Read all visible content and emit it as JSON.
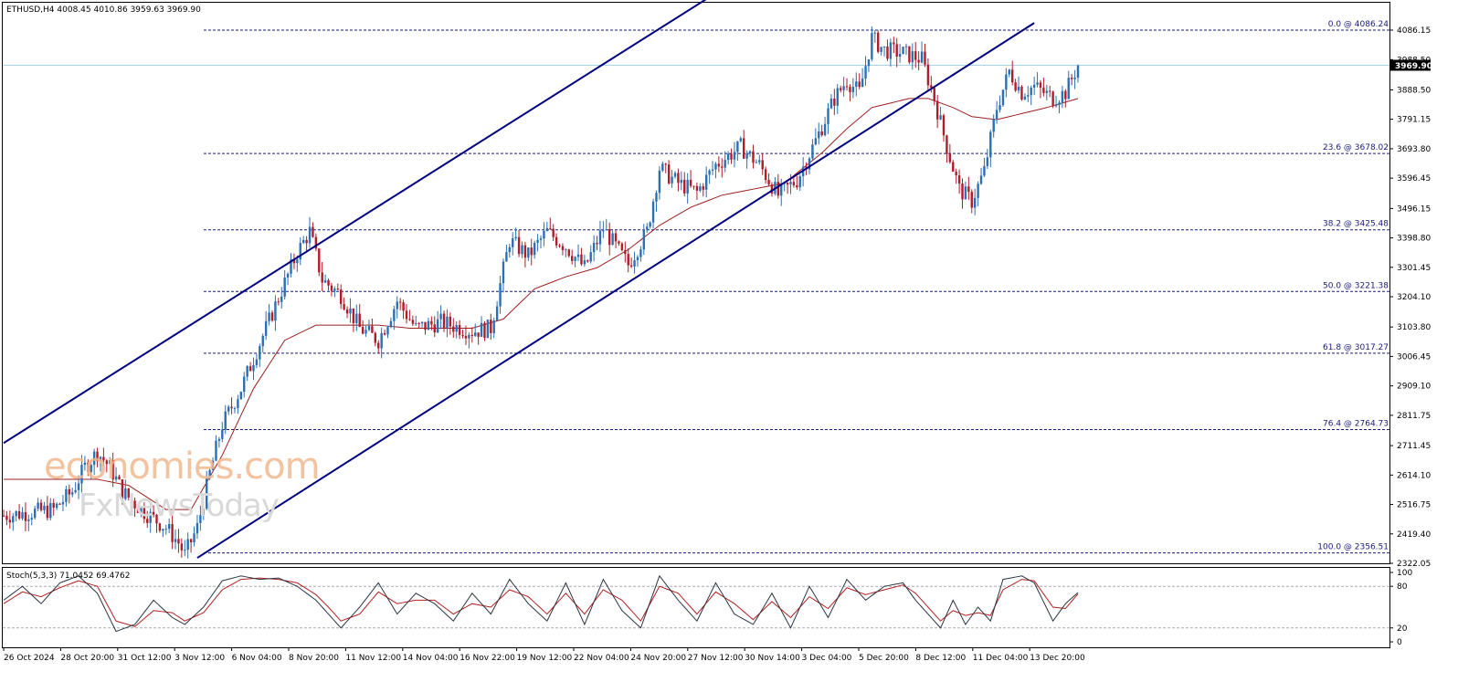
{
  "header": {
    "symbol": "ETHUSD,H4",
    "ohlc": "4008.45 4010.86 3959.63 3969.90"
  },
  "indicator": {
    "label": "Stoch(5,3,3) 71.0452 69.4762"
  },
  "watermark": {
    "line1": "economies.com",
    "line2": "FxNewsToday"
  },
  "chart_data": {
    "type": "candlestick",
    "symbol": "ETHUSD",
    "timeframe": "H4",
    "current_price": "3969.90",
    "current_price_value": 3969.9,
    "ylim": [
      2322.05,
      4183.5
    ],
    "y_ticks": [
      "4086.15",
      "3988.50",
      "3888.50",
      "3791.15",
      "3693.80",
      "3596.45",
      "3496.15",
      "3398.80",
      "3301.45",
      "3204.10",
      "3103.80",
      "3006.45",
      "2909.10",
      "2811.75",
      "2711.45",
      "2614.10",
      "2516.75",
      "2419.40",
      "2322.05"
    ],
    "x_labels": [
      "26 Oct 2024",
      "28 Oct 20:00",
      "31 Oct 12:00",
      "3 Nov 12:00",
      "6 Nov 04:00",
      "8 Nov 20:00",
      "11 Nov 12:00",
      "14 Nov 04:00",
      "16 Nov 22:00",
      "19 Nov 12:00",
      "22 Nov 04:00",
      "24 Nov 20:00",
      "27 Nov 12:00",
      "30 Nov 14:00",
      "3 Dec 04:00",
      "5 Dec 20:00",
      "8 Dec 12:00",
      "11 Dec 04:00",
      "13 Dec 20:00"
    ],
    "fibonacci": [
      {
        "label": "0.0 @ 4086.24",
        "level": 0.0,
        "price": 4086.24
      },
      {
        "label": "23.6 @ 3678.02",
        "level": 23.6,
        "price": 3678.02
      },
      {
        "label": "38.2 @ 3425.48",
        "level": 38.2,
        "price": 3425.48
      },
      {
        "label": "50.0 @ 3221.38",
        "level": 50.0,
        "price": 3221.38
      },
      {
        "label": "61.8 @ 3017.27",
        "level": 61.8,
        "price": 3017.27
      },
      {
        "label": "76.4 @ 2764.73",
        "level": 76.4,
        "price": 2764.73
      },
      {
        "label": "100.0 @ 2356.51",
        "level": 100.0,
        "price": 2356.51
      }
    ],
    "price_path": [
      [
        0,
        2480
      ],
      [
        8,
        2490
      ],
      [
        16,
        2500
      ],
      [
        22,
        2560
      ],
      [
        26,
        2640
      ],
      [
        30,
        2690
      ],
      [
        34,
        2640
      ],
      [
        38,
        2560
      ],
      [
        44,
        2500
      ],
      [
        52,
        2440
      ],
      [
        56,
        2390
      ],
      [
        58,
        2350
      ],
      [
        62,
        2440
      ],
      [
        66,
        2620
      ],
      [
        70,
        2780
      ],
      [
        76,
        2900
      ],
      [
        82,
        3050
      ],
      [
        88,
        3200
      ],
      [
        94,
        3350
      ],
      [
        98,
        3420
      ],
      [
        102,
        3260
      ],
      [
        108,
        3210
      ],
      [
        114,
        3100
      ],
      [
        120,
        3060
      ],
      [
        126,
        3190
      ],
      [
        132,
        3100
      ],
      [
        140,
        3120
      ],
      [
        150,
        3090
      ],
      [
        156,
        3100
      ],
      [
        162,
        3390
      ],
      [
        168,
        3340
      ],
      [
        174,
        3420
      ],
      [
        180,
        3370
      ],
      [
        186,
        3300
      ],
      [
        192,
        3430
      ],
      [
        196,
        3370
      ],
      [
        200,
        3310
      ],
      [
        206,
        3420
      ],
      [
        210,
        3630
      ],
      [
        216,
        3580
      ],
      [
        222,
        3550
      ],
      [
        228,
        3640
      ],
      [
        236,
        3700
      ],
      [
        242,
        3640
      ],
      [
        248,
        3540
      ],
      [
        254,
        3590
      ],
      [
        260,
        3720
      ],
      [
        266,
        3860
      ],
      [
        270,
        3920
      ],
      [
        274,
        3880
      ],
      [
        278,
        4060
      ],
      [
        282,
        4020
      ],
      [
        288,
        4010
      ],
      [
        294,
        3990
      ],
      [
        298,
        3860
      ],
      [
        302,
        3700
      ],
      [
        306,
        3560
      ],
      [
        310,
        3520
      ],
      [
        314,
        3620
      ],
      [
        318,
        3830
      ],
      [
        322,
        3950
      ],
      [
        326,
        3880
      ],
      [
        330,
        3900
      ],
      [
        336,
        3860
      ],
      [
        340,
        3880
      ],
      [
        344,
        3970
      ]
    ],
    "moving_average": [
      [
        0,
        2600
      ],
      [
        30,
        2600
      ],
      [
        40,
        2580
      ],
      [
        52,
        2500
      ],
      [
        60,
        2500
      ],
      [
        70,
        2680
      ],
      [
        80,
        2900
      ],
      [
        90,
        3060
      ],
      [
        100,
        3110
      ],
      [
        110,
        3110
      ],
      [
        120,
        3110
      ],
      [
        130,
        3100
      ],
      [
        150,
        3100
      ],
      [
        160,
        3130
      ],
      [
        170,
        3230
      ],
      [
        180,
        3270
      ],
      [
        190,
        3300
      ],
      [
        200,
        3360
      ],
      [
        210,
        3440
      ],
      [
        220,
        3500
      ],
      [
        230,
        3540
      ],
      [
        240,
        3560
      ],
      [
        250,
        3580
      ],
      [
        262,
        3680
      ],
      [
        270,
        3760
      ],
      [
        278,
        3830
      ],
      [
        290,
        3860
      ],
      [
        296,
        3860
      ],
      [
        304,
        3830
      ],
      [
        310,
        3800
      ],
      [
        318,
        3790
      ],
      [
        326,
        3810
      ],
      [
        334,
        3830
      ],
      [
        344,
        3860
      ]
    ],
    "channel": {
      "upper": [
        [
          0,
          2720
        ],
        [
          242,
          4300
        ]
      ],
      "lower": [
        [
          62,
          2340
        ],
        [
          330,
          4110
        ]
      ]
    },
    "stochastic": {
      "name": "Stoch(5,3,3)",
      "k": 71.0452,
      "d": 69.4762,
      "levels": [
        20,
        80
      ],
      "scale_labels": [
        "100",
        "80",
        "20",
        "0"
      ],
      "k_path": [
        [
          0,
          60
        ],
        [
          6,
          80
        ],
        [
          12,
          55
        ],
        [
          18,
          85
        ],
        [
          24,
          95
        ],
        [
          30,
          70
        ],
        [
          36,
          15
        ],
        [
          42,
          25
        ],
        [
          48,
          60
        ],
        [
          54,
          35
        ],
        [
          58,
          25
        ],
        [
          64,
          50
        ],
        [
          70,
          88
        ],
        [
          76,
          95
        ],
        [
          82,
          90
        ],
        [
          88,
          92
        ],
        [
          94,
          80
        ],
        [
          100,
          60
        ],
        [
          104,
          40
        ],
        [
          108,
          20
        ],
        [
          114,
          50
        ],
        [
          120,
          85
        ],
        [
          126,
          40
        ],
        [
          132,
          70
        ],
        [
          138,
          55
        ],
        [
          144,
          30
        ],
        [
          150,
          70
        ],
        [
          156,
          40
        ],
        [
          162,
          90
        ],
        [
          168,
          55
        ],
        [
          174,
          30
        ],
        [
          180,
          85
        ],
        [
          186,
          25
        ],
        [
          192,
          90
        ],
        [
          198,
          45
        ],
        [
          204,
          20
        ],
        [
          210,
          95
        ],
        [
          216,
          60
        ],
        [
          222,
          30
        ],
        [
          228,
          85
        ],
        [
          234,
          40
        ],
        [
          240,
          25
        ],
        [
          246,
          70
        ],
        [
          252,
          20
        ],
        [
          258,
          80
        ],
        [
          264,
          35
        ],
        [
          270,
          90
        ],
        [
          276,
          60
        ],
        [
          282,
          80
        ],
        [
          288,
          85
        ],
        [
          292,
          60
        ],
        [
          296,
          40
        ],
        [
          300,
          20
        ],
        [
          304,
          60
        ],
        [
          308,
          25
        ],
        [
          312,
          50
        ],
        [
          316,
          30
        ],
        [
          320,
          90
        ],
        [
          326,
          95
        ],
        [
          330,
          85
        ],
        [
          336,
          30
        ],
        [
          340,
          55
        ],
        [
          344,
          71
        ]
      ],
      "d_path": [
        [
          0,
          55
        ],
        [
          6,
          72
        ],
        [
          12,
          65
        ],
        [
          18,
          78
        ],
        [
          24,
          88
        ],
        [
          30,
          80
        ],
        [
          36,
          30
        ],
        [
          42,
          22
        ],
        [
          48,
          45
        ],
        [
          54,
          42
        ],
        [
          58,
          30
        ],
        [
          64,
          42
        ],
        [
          70,
          75
        ],
        [
          76,
          90
        ],
        [
          82,
          92
        ],
        [
          88,
          90
        ],
        [
          94,
          85
        ],
        [
          100,
          68
        ],
        [
          104,
          50
        ],
        [
          108,
          30
        ],
        [
          114,
          40
        ],
        [
          120,
          72
        ],
        [
          126,
          55
        ],
        [
          132,
          60
        ],
        [
          138,
          60
        ],
        [
          144,
          40
        ],
        [
          150,
          55
        ],
        [
          156,
          50
        ],
        [
          162,
          75
        ],
        [
          168,
          65
        ],
        [
          174,
          40
        ],
        [
          180,
          70
        ],
        [
          186,
          40
        ],
        [
          192,
          75
        ],
        [
          198,
          60
        ],
        [
          204,
          30
        ],
        [
          210,
          80
        ],
        [
          216,
          70
        ],
        [
          222,
          40
        ],
        [
          228,
          72
        ],
        [
          234,
          55
        ],
        [
          240,
          32
        ],
        [
          246,
          58
        ],
        [
          252,
          35
        ],
        [
          258,
          65
        ],
        [
          264,
          48
        ],
        [
          270,
          78
        ],
        [
          276,
          68
        ],
        [
          282,
          75
        ],
        [
          288,
          82
        ],
        [
          292,
          70
        ],
        [
          296,
          50
        ],
        [
          300,
          30
        ],
        [
          304,
          45
        ],
        [
          308,
          38
        ],
        [
          312,
          42
        ],
        [
          316,
          38
        ],
        [
          320,
          75
        ],
        [
          326,
          90
        ],
        [
          330,
          88
        ],
        [
          336,
          50
        ],
        [
          340,
          48
        ],
        [
          344,
          69
        ]
      ]
    }
  },
  "colors": {
    "bull": "#2b6fb5",
    "bear": "#b01c2a",
    "channel": "#00007d",
    "fib": "#1a1a7a",
    "ma": "#9c2020",
    "current_line": "#a8d3ea",
    "stoch_main": "#2b3440",
    "stoch_signal": "#b02020",
    "grid_level": "#aaaaaa",
    "axis": "#000000"
  }
}
